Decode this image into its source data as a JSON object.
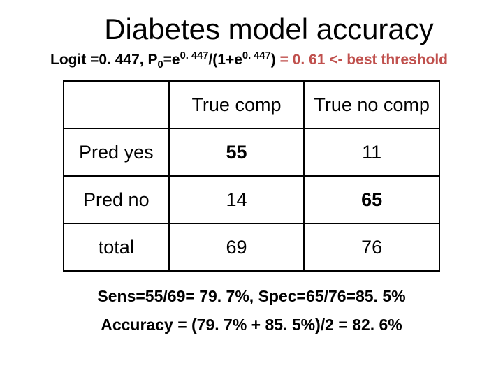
{
  "title": "Diabetes model accuracy",
  "subtitle": {
    "main_prefix": "Logit =0. 447,  P",
    "sub0": "0",
    "eq": "=e",
    "exp1": "0. 447",
    "mid": "/(1+e",
    "exp2": "0. 447",
    "close": ") ",
    "red": "= 0. 61 <- best threshold"
  },
  "table": {
    "columns": [
      "",
      "True comp",
      "True no comp"
    ],
    "rows": [
      {
        "label": "Pred yes",
        "c1": "55",
        "c2": "11",
        "bold1": true,
        "bold2": false
      },
      {
        "label": "Pred no",
        "c1": "14",
        "c2": "65",
        "bold1": false,
        "bold2": true
      },
      {
        "label": "total",
        "c1": "69",
        "c2": "76",
        "bold1": false,
        "bold2": false
      }
    ],
    "border_color": "#000000",
    "cell_fontsize": 27,
    "background_color": "#ffffff"
  },
  "footer1": "Sens=55/69= 79. 7%,  Spec=65/76=85. 5%",
  "footer2": "Accuracy = (79. 7% + 85. 5%)/2 = 82. 6%",
  "colors": {
    "text": "#000000",
    "highlight": "#c0504d",
    "background": "#ffffff"
  },
  "typography": {
    "title_fontsize": 42,
    "subtitle_fontsize": 21,
    "footer_fontsize": 23,
    "font_family": "Arial"
  }
}
